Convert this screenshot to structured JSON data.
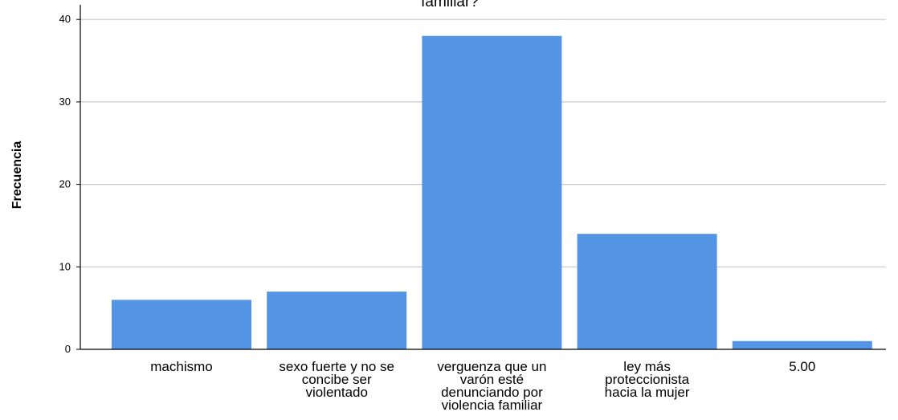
{
  "chart_data": {
    "type": "bar",
    "title": "familiar?",
    "xlabel": "",
    "ylabel": "Frecuencia",
    "categories": [
      [
        "machismo"
      ],
      [
        "sexo fuerte y no se",
        "concibe ser",
        "violentado"
      ],
      [
        "verguenza que un",
        "varón esté",
        "denunciando por",
        "violencia familiar"
      ],
      [
        "ley más",
        "proteccionista",
        "hacia la mujer"
      ],
      [
        "5.00"
      ]
    ],
    "values": [
      6,
      7,
      38,
      14,
      1
    ],
    "ylim": [
      0,
      41
    ],
    "yticks": [
      0,
      10,
      20,
      30,
      40
    ],
    "grid": true,
    "bar_color": "#5494e4",
    "grid_color": "#c8c8c8"
  }
}
